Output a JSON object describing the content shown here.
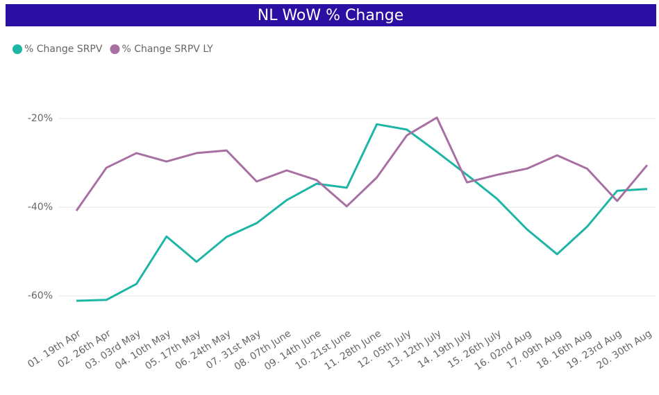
{
  "chart_data": {
    "type": "line",
    "title": "NL WoW % Change",
    "categories": [
      "01. 19th Apr",
      "02. 26th Apr",
      "03. 03rd May",
      "04. 10th May",
      "05. 17th May",
      "06. 24th May",
      "07. 31st May",
      "08. 07th June",
      "09. 14th June",
      "10. 21st June",
      "11. 28th June",
      "12. 05th July",
      "13. 12th July",
      "14. 19th July",
      "15. 26th July",
      "16. 02nd Aug",
      "17. 09th Aug",
      "18. 16th Aug",
      "19. 23rd Aug",
      "20. 30th Aug"
    ],
    "series": [
      {
        "name": "% Change SRPV",
        "color": "#1db5a6",
        "values": [
          -61.1,
          -60.9,
          -57.3,
          -46.6,
          -52.3,
          -46.7,
          -43.6,
          -38.4,
          -34.7,
          -35.6,
          -21.3,
          -22.5,
          -27.5,
          -32.7,
          -38.1,
          -45.0,
          -50.6,
          -44.4,
          -36.3,
          -35.9
        ]
      },
      {
        "name": "% Change SRPV LY",
        "color": "#a86fa3",
        "values": [
          -40.8,
          -31.1,
          -27.8,
          -29.7,
          -27.8,
          -27.2,
          -34.2,
          -31.7,
          -33.9,
          -39.8,
          -33.3,
          -23.8,
          -19.8,
          -34.4,
          -32.7,
          -31.3,
          -28.3,
          -31.3,
          -38.6,
          -30.5
        ]
      }
    ],
    "ylim": [
      -70,
      -10
    ],
    "yticks": [
      {
        "value": -60,
        "label": "-60%"
      },
      {
        "value": -40,
        "label": "-40%"
      },
      {
        "value": -20,
        "label": "-20%"
      }
    ],
    "grid": true,
    "legend": "top-left"
  }
}
